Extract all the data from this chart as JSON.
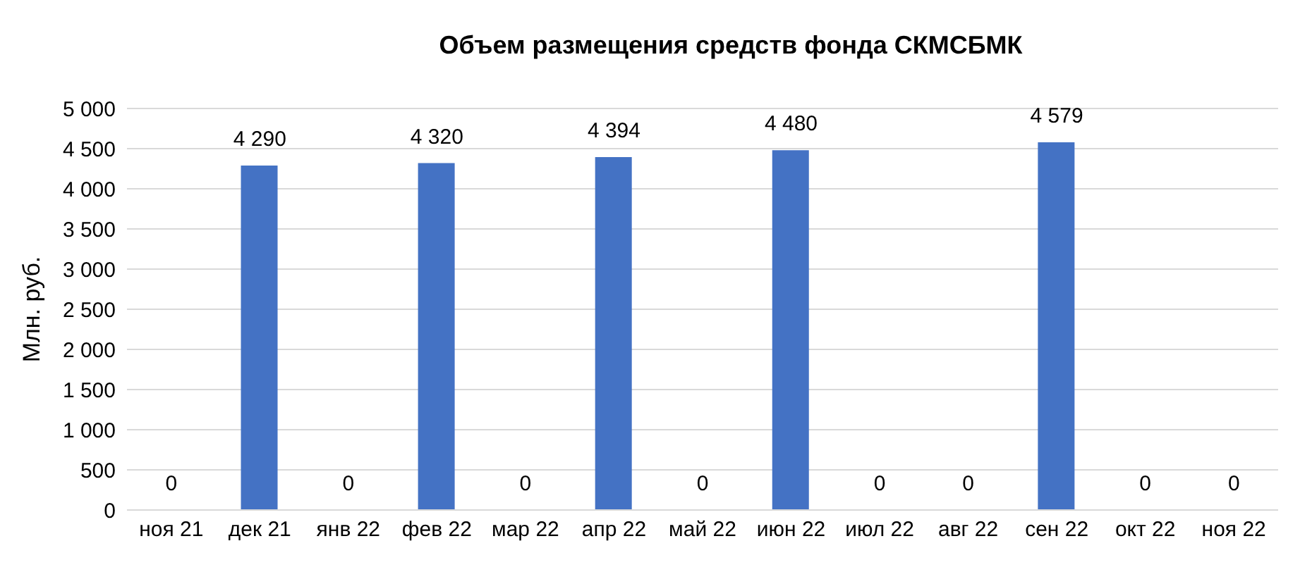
{
  "chart_data": {
    "type": "bar",
    "title": "Объем размещения средств фонда СКМСБМК",
    "ylabel": "Млн. руб.",
    "categories": [
      "ноя 21",
      "дек 21",
      "янв 22",
      "фев 22",
      "мар 22",
      "апр 22",
      "май 22",
      "июн 22",
      "июл 22",
      "авг 22",
      "сен 22",
      "окт 22",
      "ноя 22"
    ],
    "values": [
      0,
      4290,
      0,
      4320,
      0,
      4394,
      0,
      4480,
      0,
      0,
      4579,
      0,
      0
    ],
    "value_labels": [
      "0",
      "4 290",
      "0",
      "4 320",
      "0",
      "4 394",
      "0",
      "4 480",
      "0",
      "0",
      "4 579",
      "0",
      "0"
    ],
    "color": "#4472c4",
    "ylim": [
      0,
      5000
    ],
    "yticks": [
      0,
      {
        "value": 500,
        "label": "500"
      },
      {
        "value": 1000,
        "label": "1 000"
      },
      {
        "value": 1500,
        "label": "1 500"
      },
      {
        "value": 2000,
        "label": "2 000"
      },
      {
        "value": 2500,
        "label": "2 500"
      },
      {
        "value": 3000,
        "label": "3 000"
      },
      {
        "value": 3500,
        "label": "3 500"
      },
      {
        "value": 4000,
        "label": "4 000"
      },
      {
        "value": 4500,
        "label": "4 500"
      },
      {
        "value": 5000,
        "label": "5 000"
      }
    ],
    "grid": "y",
    "legend": false
  }
}
